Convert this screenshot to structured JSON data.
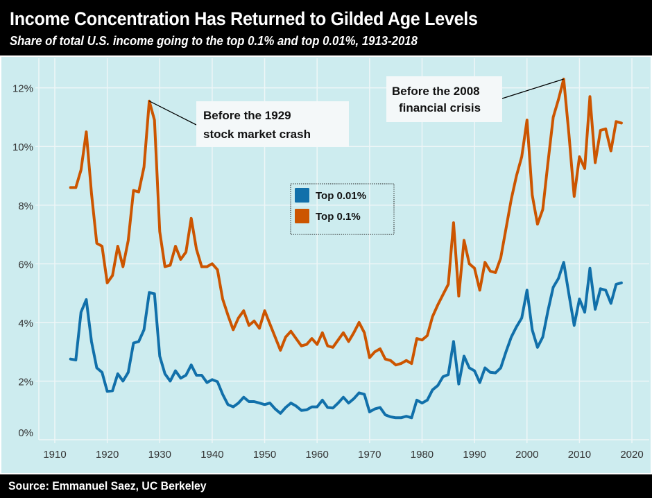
{
  "header": {
    "title": "Income Concentration Has Returned to Gilded Age Levels",
    "subtitle": "Share of total U.S. income going to the top 0.1% and top 0.01%, 1913-2018"
  },
  "footer": {
    "source": "Source: Emmanuel Saez, UC Berkeley"
  },
  "colors": {
    "top_01": "#cc5500",
    "top_001": "#1170aa",
    "background": "#cdecef",
    "grid": "#eef6f7"
  },
  "chart_data": {
    "type": "line",
    "title": "Income Concentration Has Returned to Gilded Age Levels",
    "subtitle": "Share of total U.S. income going to the top 0.1% and top 0.01%, 1913-2018",
    "xlabel": "",
    "ylabel": "",
    "xlim": [
      1907,
      2024
    ],
    "ylim": [
      -0.3,
      12.8
    ],
    "grid": true,
    "x_ticks": [
      1910,
      1920,
      1930,
      1940,
      1950,
      1960,
      1970,
      1980,
      1990,
      2000,
      2010,
      2020
    ],
    "y_ticks": [
      0,
      2,
      4,
      6,
      8,
      10,
      12
    ],
    "y_tick_labels": [
      "0%",
      "2%",
      "4%",
      "6%",
      "8%",
      "10%",
      "12%"
    ],
    "legend": {
      "placement": "center-top",
      "entries": [
        "Top 0.01%",
        "Top 0.1%"
      ]
    },
    "x_start": 1913,
    "series": [
      {
        "name": "Top 0.01%",
        "color": "#1170aa",
        "values": [
          2.75,
          2.72,
          4.35,
          4.78,
          3.35,
          2.45,
          2.3,
          1.65,
          1.67,
          2.25,
          2.0,
          2.3,
          3.3,
          3.35,
          3.75,
          5.02,
          4.98,
          2.85,
          2.25,
          2.0,
          2.35,
          2.1,
          2.2,
          2.55,
          2.2,
          2.2,
          1.95,
          2.05,
          1.98,
          1.55,
          1.2,
          1.12,
          1.25,
          1.45,
          1.3,
          1.3,
          1.25,
          1.2,
          1.25,
          1.05,
          0.9,
          1.1,
          1.25,
          1.15,
          1.0,
          1.02,
          1.12,
          1.12,
          1.35,
          1.1,
          1.08,
          1.25,
          1.45,
          1.25,
          1.4,
          1.6,
          1.55,
          0.95,
          1.05,
          1.1,
          0.85,
          0.78,
          0.75,
          0.75,
          0.8,
          0.75,
          1.35,
          1.25,
          1.35,
          1.7,
          1.85,
          2.15,
          2.22,
          3.35,
          1.9,
          2.85,
          2.45,
          2.35,
          1.95,
          2.45,
          2.3,
          2.28,
          2.45,
          3.0,
          3.5,
          3.85,
          4.15,
          5.1,
          3.75,
          3.15,
          3.5,
          4.4,
          5.2,
          5.5,
          6.05,
          4.95,
          3.9,
          4.8,
          4.35,
          5.85,
          4.45,
          5.15,
          5.1,
          4.65,
          5.3,
          5.35
        ]
      },
      {
        "name": "Top 0.1%",
        "color": "#cc5500",
        "values": [
          8.6,
          8.6,
          9.2,
          10.5,
          8.4,
          6.7,
          6.6,
          5.35,
          5.6,
          6.6,
          5.9,
          6.8,
          8.5,
          8.45,
          9.3,
          11.55,
          10.9,
          7.1,
          5.9,
          5.95,
          6.6,
          6.15,
          6.4,
          7.55,
          6.5,
          5.9,
          5.9,
          6.0,
          5.8,
          4.8,
          4.25,
          3.75,
          4.15,
          4.4,
          3.9,
          4.05,
          3.8,
          4.4,
          3.95,
          3.5,
          3.05,
          3.5,
          3.7,
          3.45,
          3.2,
          3.25,
          3.45,
          3.25,
          3.65,
          3.2,
          3.15,
          3.4,
          3.65,
          3.35,
          3.65,
          4.0,
          3.65,
          2.8,
          3.0,
          3.1,
          2.75,
          2.7,
          2.55,
          2.6,
          2.7,
          2.6,
          3.45,
          3.4,
          3.55,
          4.2,
          4.6,
          4.95,
          5.3,
          7.4,
          4.9,
          6.8,
          6.0,
          5.85,
          5.1,
          6.05,
          5.75,
          5.7,
          6.2,
          7.2,
          8.2,
          9.0,
          9.65,
          10.9,
          8.35,
          7.35,
          7.85,
          9.45,
          11.0,
          11.6,
          12.3,
          10.4,
          8.3,
          9.65,
          9.25,
          11.7,
          9.45,
          10.55,
          10.6,
          9.85,
          10.85,
          10.8
        ]
      }
    ],
    "annotations": [
      {
        "lines": [
          "Before the 1929",
          "stock market crash"
        ],
        "target_year": 1928,
        "target_value": 11.55,
        "series": "Top 0.1%"
      },
      {
        "lines": [
          "Before the 2008",
          "financial crisis"
        ],
        "target_year": 2007,
        "target_value": 12.3,
        "series": "Top 0.1%"
      }
    ]
  }
}
